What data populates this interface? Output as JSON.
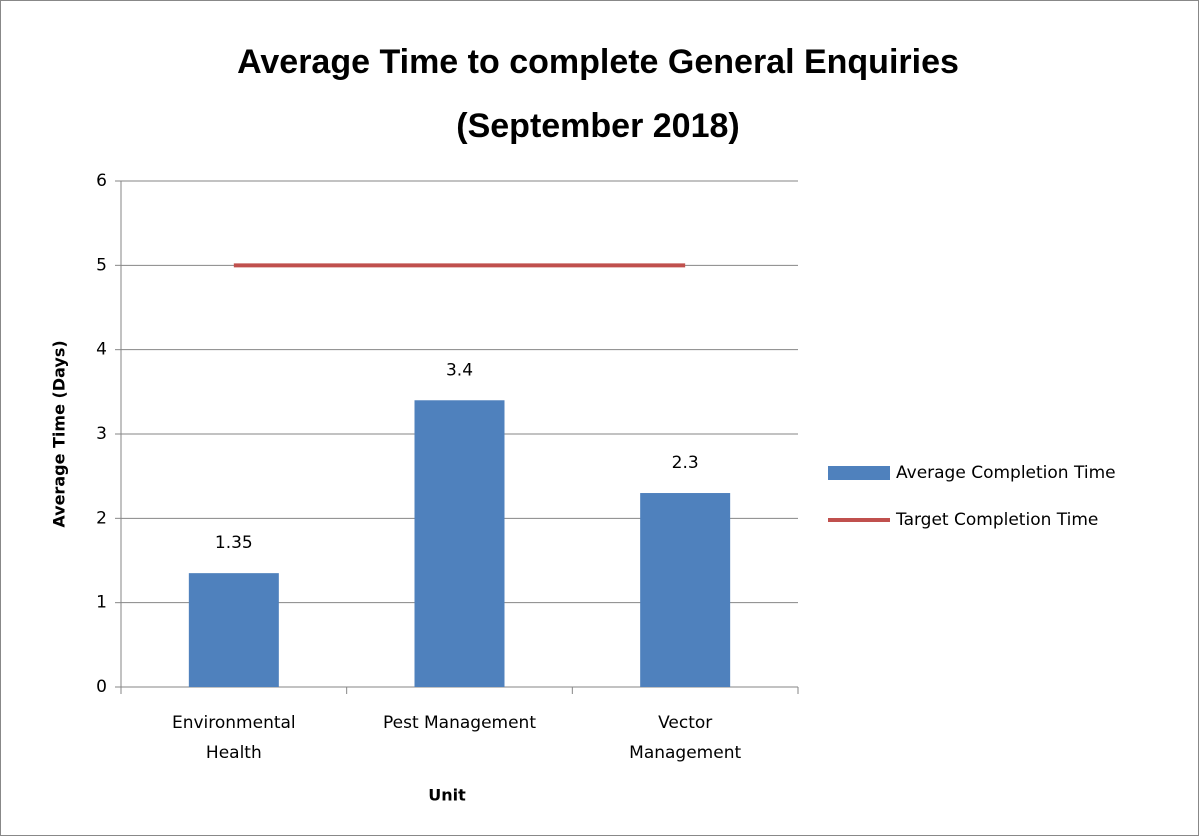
{
  "chart_data": {
    "type": "bar",
    "title": [
      "Average Time to complete General Enquiries",
      "(September 2018)"
    ],
    "xlabel": "Unit",
    "ylabel": "Average Time (Days)",
    "categories": [
      "Environmental Health",
      "Pest Management",
      "Vector Management"
    ],
    "series": [
      {
        "name": "Average Completion Time",
        "type": "bar",
        "color": "#4f81bd",
        "values": [
          1.35,
          3.4,
          2.3
        ]
      },
      {
        "name": "Target Completion Time",
        "type": "line",
        "color": "#c0504d",
        "values": [
          5,
          5,
          5
        ]
      }
    ],
    "ylim": [
      0,
      6
    ],
    "yticks": [
      0,
      1,
      2,
      3,
      4,
      5,
      6
    ],
    "grid": true,
    "legend": "right"
  }
}
